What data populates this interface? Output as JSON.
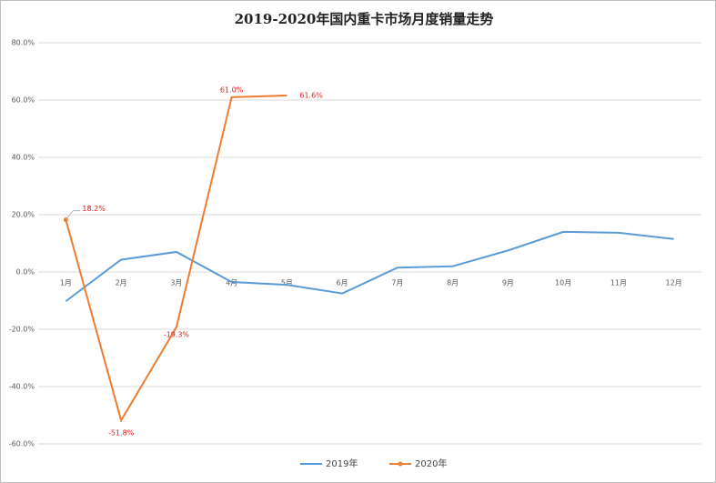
{
  "chart_data": {
    "type": "line",
    "title": "2019-2020年国内重卡市场月度销量走势",
    "categories": [
      "1月",
      "2月",
      "3月",
      "4月",
      "5月",
      "6月",
      "7月",
      "8月",
      "9月",
      "10月",
      "11月",
      "12月"
    ],
    "series": [
      {
        "name": "2019年",
        "color": "#5b9bd5",
        "values": [
          -10.2,
          4.3,
          7.0,
          -3.5,
          -4.5,
          -7.5,
          1.5,
          2.0,
          7.5,
          14.0,
          13.7,
          11.5
        ]
      },
      {
        "name": "2020年",
        "color": "#ed7d31",
        "values": [
          18.2,
          -51.8,
          -19.3,
          61.0,
          61.6,
          null,
          null,
          null,
          null,
          null,
          null,
          null
        ],
        "value_labels": [
          "18.2%",
          "-51.8%",
          "-19.3%",
          "61.0%",
          "61.6%",
          null,
          null,
          null,
          null,
          null,
          null,
          null
        ]
      }
    ],
    "ylim": [
      -60,
      80
    ],
    "yticks": [
      {
        "value": -60,
        "label": "-60.0%"
      },
      {
        "value": -40,
        "label": "-40.0%"
      },
      {
        "value": -20,
        "label": "-20.0%"
      },
      {
        "value": 0,
        "label": "0.0%"
      },
      {
        "value": 20,
        "label": "20.0%"
      },
      {
        "value": 40,
        "label": "40.0%"
      },
      {
        "value": 60,
        "label": "60.0%"
      },
      {
        "value": 80,
        "label": "80.0%"
      }
    ],
    "grid": true
  }
}
